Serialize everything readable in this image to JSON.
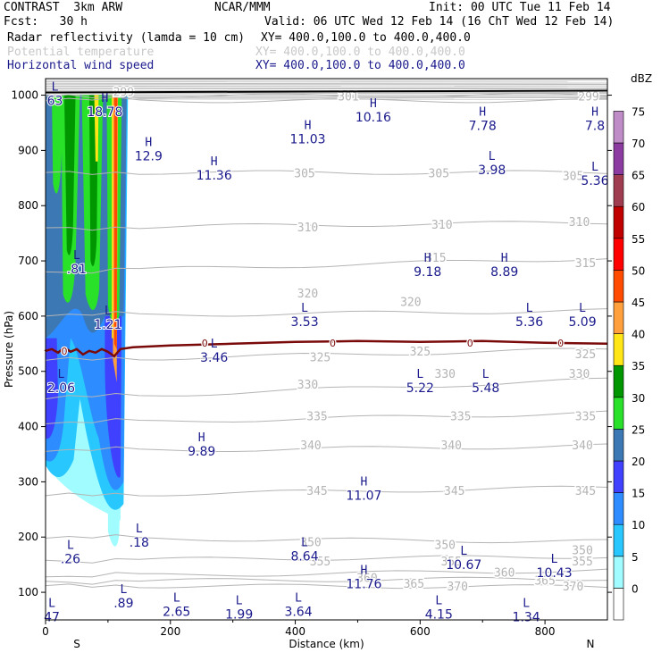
{
  "header": {
    "model": "CONTRAST  3km ARW",
    "org": "NCAR/MMM",
    "init": "Init: 00 UTC Tue 11 Feb 14",
    "fcst": "Fcst:   30 h",
    "valid": "Valid: 06 UTC Wed 12 Feb 14 (16 ChT Wed 12 Feb 14)",
    "fields": [
      {
        "name": "Radar reflectivity (lamda = 10 cm)",
        "xy": "XY= 400.0,100.0 to 400.0,400.0",
        "color": "#000000"
      },
      {
        "name": "Potential temperature",
        "xy": "XY= 400.0,100.0 to 400.0,400.0",
        "color": "#c8c8c8"
      },
      {
        "name": "Horizontal wind speed",
        "xy": "XY= 400.0,100.0 to 400.0,400.0",
        "color": "#1a1a8c"
      }
    ]
  },
  "chart_data": {
    "type": "contour-cross-section",
    "xlabel": "Distance (km)",
    "ylabel": "Pressure (hPa)",
    "xlim": [
      0,
      900
    ],
    "ylim": [
      1030,
      50
    ],
    "x_ticks": [
      0,
      200,
      400,
      600,
      800
    ],
    "y_ticks": [
      100,
      200,
      300,
      400,
      500,
      600,
      700,
      800,
      900,
      1000
    ],
    "x_end_labels": {
      "left": "S",
      "right": "N"
    },
    "colorbar": {
      "title": "dBZ",
      "levels": [
        0,
        5,
        10,
        15,
        20,
        25,
        30,
        35,
        40,
        45,
        50,
        55,
        60,
        65,
        70,
        75
      ],
      "colors": [
        "#ffffff",
        "#a0fcff",
        "#28c8ff",
        "#2d8cff",
        "#4040ff",
        "#3c78b4",
        "#28e128",
        "#009600",
        "#ffe614",
        "#ffa03c",
        "#ff4b00",
        "#ff0000",
        "#c00000",
        "#a03c50",
        "#8c3ca0",
        "#c08cc8"
      ]
    },
    "theta_contours": [
      {
        "label": "370",
        "p_left": 112,
        "p_right": 110
      },
      {
        "label": "365",
        "p_left": 120,
        "p_right": 125
      },
      {
        "label": "360",
        "p_left": 128,
        "p_right": 140
      },
      {
        "label": "355",
        "p_left": 158,
        "p_right": 165
      },
      {
        "label": "350",
        "p_left": 198,
        "p_right": 192
      },
      {
        "label": "345",
        "p_left": 275,
        "p_right": 290
      },
      {
        "label": "340",
        "p_left": 355,
        "p_right": 365
      },
      {
        "label": "335",
        "p_left": 405,
        "p_right": 425
      },
      {
        "label": "330",
        "p_left": 450,
        "p_right": 485
      },
      {
        "label": "325",
        "p_left": 520,
        "p_right": 540
      },
      {
        "label": "320",
        "p_left": 600,
        "p_right": 610
      },
      {
        "label": "315",
        "p_left": 680,
        "p_right": 705
      },
      {
        "label": "310",
        "p_left": 760,
        "p_right": 770
      },
      {
        "label": "305",
        "p_left": 860,
        "p_right": 860
      },
      {
        "label": "301",
        "p_left": 990,
        "p_right": 990
      },
      {
        "label": "299",
        "p_left": 998,
        "p_right": 1000
      }
    ],
    "theta_labels": [
      {
        "text": "370",
        "x": 660,
        "p": 110
      },
      {
        "text": "370",
        "x": 845,
        "p": 110
      },
      {
        "text": "365",
        "x": 590,
        "p": 115
      },
      {
        "text": "365",
        "x": 800,
        "p": 120
      },
      {
        "text": "360",
        "x": 515,
        "p": 125
      },
      {
        "text": "360",
        "x": 735,
        "p": 135
      },
      {
        "text": "355",
        "x": 440,
        "p": 155
      },
      {
        "text": "355",
        "x": 650,
        "p": 155
      },
      {
        "text": "355",
        "x": 860,
        "p": 155
      },
      {
        "text": "350",
        "x": 425,
        "p": 190
      },
      {
        "text": "350",
        "x": 640,
        "p": 185
      },
      {
        "text": "350",
        "x": 860,
        "p": 175
      },
      {
        "text": "345",
        "x": 435,
        "p": 283
      },
      {
        "text": "345",
        "x": 655,
        "p": 283
      },
      {
        "text": "345",
        "x": 865,
        "p": 283
      },
      {
        "text": "340",
        "x": 425,
        "p": 365
      },
      {
        "text": "340",
        "x": 650,
        "p": 365
      },
      {
        "text": "340",
        "x": 860,
        "p": 365
      },
      {
        "text": "335",
        "x": 435,
        "p": 418
      },
      {
        "text": "335",
        "x": 665,
        "p": 418
      },
      {
        "text": "335",
        "x": 865,
        "p": 418
      },
      {
        "text": "330",
        "x": 420,
        "p": 475
      },
      {
        "text": "330",
        "x": 640,
        "p": 495
      },
      {
        "text": "330",
        "x": 855,
        "p": 495
      },
      {
        "text": "325",
        "x": 440,
        "p": 525
      },
      {
        "text": "325",
        "x": 600,
        "p": 535
      },
      {
        "text": "325",
        "x": 865,
        "p": 530
      },
      {
        "text": "320",
        "x": 420,
        "p": 640
      },
      {
        "text": "320",
        "x": 585,
        "p": 625
      },
      {
        "text": "315",
        "x": 625,
        "p": 705
      },
      {
        "text": "315",
        "x": 865,
        "p": 695
      },
      {
        "text": "310",
        "x": 420,
        "p": 760
      },
      {
        "text": "310",
        "x": 635,
        "p": 765
      },
      {
        "text": "310",
        "x": 855,
        "p": 770
      },
      {
        "text": "305",
        "x": 415,
        "p": 858
      },
      {
        "text": "305",
        "x": 630,
        "p": 858
      },
      {
        "text": "305",
        "x": 845,
        "p": 853
      },
      {
        "text": "301",
        "x": 485,
        "p": 997
      },
      {
        "text": "299",
        "x": 870,
        "p": 997
      },
      {
        "text": "299",
        "x": 125,
        "p": 1005
      }
    ],
    "freezing_level": {
      "label": "0",
      "p": 550
    },
    "ground_pressure": 1005,
    "wind_extrema": [
      {
        "type": "L",
        "value": "47",
        "x": 10,
        "p": 70
      },
      {
        "type": "L",
        "value": ".89",
        "x": 125,
        "p": 95
      },
      {
        "type": "L",
        "value": "2.65",
        "x": 210,
        "p": 80
      },
      {
        "type": "L",
        "value": "1.99",
        "x": 310,
        "p": 75
      },
      {
        "type": "L",
        "value": "3.64",
        "x": 405,
        "p": 80
      },
      {
        "type": "L",
        "value": "4.15",
        "x": 630,
        "p": 75
      },
      {
        "type": "L",
        "value": "1.34",
        "x": 770,
        "p": 70
      },
      {
        "type": "H",
        "value": "11.76",
        "x": 510,
        "p": 130
      },
      {
        "type": "L",
        "value": ".26",
        "x": 40,
        "p": 175
      },
      {
        "type": "L",
        "value": ".18",
        "x": 150,
        "p": 205
      },
      {
        "type": "L",
        "value": "8.64",
        "x": 415,
        "p": 180
      },
      {
        "type": "L",
        "value": "10.67",
        "x": 670,
        "p": 165
      },
      {
        "type": "L",
        "value": "10.43",
        "x": 815,
        "p": 150
      },
      {
        "type": "H",
        "value": "11.07",
        "x": 510,
        "p": 290
      },
      {
        "type": "H",
        "value": "9.89",
        "x": 250,
        "p": 370
      },
      {
        "type": "L",
        "value": "2.06",
        "x": 25,
        "p": 485
      },
      {
        "type": "L",
        "value": "5.22",
        "x": 600,
        "p": 485
      },
      {
        "type": "L",
        "value": "5.48",
        "x": 705,
        "p": 485
      },
      {
        "type": "L",
        "value": "3.46",
        "x": 270,
        "p": 540
      },
      {
        "type": "L",
        "value": "1.21",
        "x": 100,
        "p": 600
      },
      {
        "type": "L",
        "value": "3.53",
        "x": 415,
        "p": 605
      },
      {
        "type": "L",
        "value": "5.36",
        "x": 775,
        "p": 605
      },
      {
        "type": "L",
        "value": "5.09",
        "x": 860,
        "p": 605
      },
      {
        "type": "L",
        "value": ".81",
        "x": 50,
        "p": 700
      },
      {
        "type": "H",
        "value": "9.18",
        "x": 612,
        "p": 695
      },
      {
        "type": "H",
        "value": "8.89",
        "x": 735,
        "p": 695
      },
      {
        "type": "L",
        "value": "5.36",
        "x": 880,
        "p": 860
      },
      {
        "type": "H",
        "value": "11.36",
        "x": 270,
        "p": 870
      },
      {
        "type": "H",
        "value": "12.9",
        "x": 165,
        "p": 905
      },
      {
        "type": "L",
        "value": "3.98",
        "x": 715,
        "p": 880
      },
      {
        "type": "H",
        "value": "11.03",
        "x": 420,
        "p": 935
      },
      {
        "type": "H",
        "value": "7.78",
        "x": 700,
        "p": 960
      },
      {
        "type": "H",
        "value": "7.8",
        "x": 880,
        "p": 960
      },
      {
        "type": "H",
        "value": "10.16",
        "x": 525,
        "p": 975
      },
      {
        "type": "H",
        "value": "18.78",
        "x": 95,
        "p": 985
      },
      {
        "type": "L",
        "value": "63",
        "x": 15,
        "p": 1005
      }
    ]
  }
}
